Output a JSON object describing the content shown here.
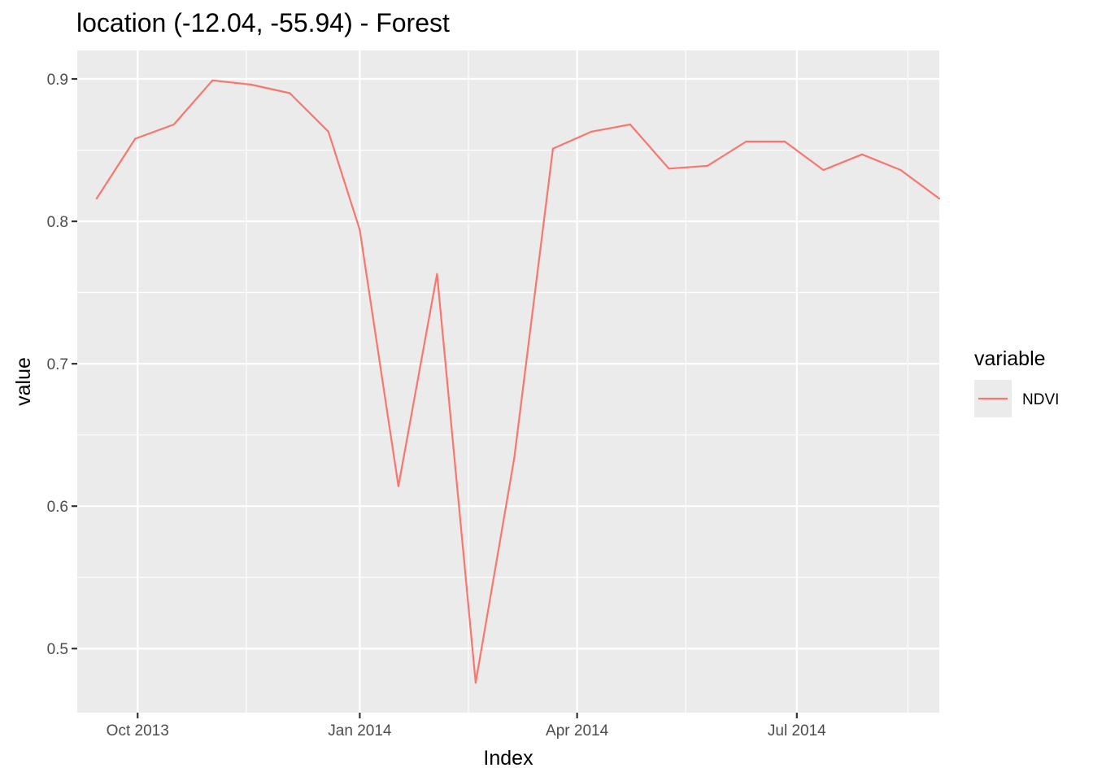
{
  "chart_data": {
    "type": "line",
    "title": "location (-12.04, -55.94) - Forest",
    "xlabel": "Index",
    "ylabel": "value",
    "xlim": [
      "2013-09-06",
      "2014-08-29"
    ],
    "ylim": [
      0.455,
      0.92
    ],
    "x_ticks": [
      {
        "date": "2013-10-01",
        "label": "Oct 2013"
      },
      {
        "date": "2014-01-01",
        "label": "Jan 2014"
      },
      {
        "date": "2014-04-01",
        "label": "Apr 2014"
      },
      {
        "date": "2014-07-01",
        "label": "Jul 2014"
      }
    ],
    "x_minor_ticks": [
      "2013-11-15",
      "2014-02-15",
      "2014-05-16",
      "2014-08-16"
    ],
    "y_ticks": [
      {
        "value": 0.5,
        "label": "0.5"
      },
      {
        "value": 0.6,
        "label": "0.6"
      },
      {
        "value": 0.7,
        "label": "0.7"
      },
      {
        "value": 0.8,
        "label": "0.8"
      },
      {
        "value": 0.9,
        "label": "0.9"
      }
    ],
    "y_minor_ticks": [
      0.55,
      0.65,
      0.75,
      0.85
    ],
    "grid": true,
    "legend": {
      "title": "variable",
      "position": "right"
    },
    "series": [
      {
        "name": "NDVI",
        "color": "#F8766D",
        "x": [
          "2013-09-14",
          "2013-09-30",
          "2013-10-16",
          "2013-11-01",
          "2013-11-17",
          "2013-12-03",
          "2013-12-19",
          "2014-01-01",
          "2014-01-17",
          "2014-02-02",
          "2014-02-18",
          "2014-03-06",
          "2014-03-22",
          "2014-04-07",
          "2014-04-23",
          "2014-05-09",
          "2014-05-25",
          "2014-06-10",
          "2014-06-26",
          "2014-07-12",
          "2014-07-28",
          "2014-08-13",
          "2014-08-29"
        ],
        "values": [
          0.816,
          0.858,
          0.868,
          0.899,
          0.896,
          0.89,
          0.863,
          0.794,
          0.614,
          0.763,
          0.476,
          0.634,
          0.851,
          0.863,
          0.868,
          0.837,
          0.839,
          0.856,
          0.856,
          0.836,
          0.847,
          0.836,
          0.816
        ]
      }
    ]
  }
}
